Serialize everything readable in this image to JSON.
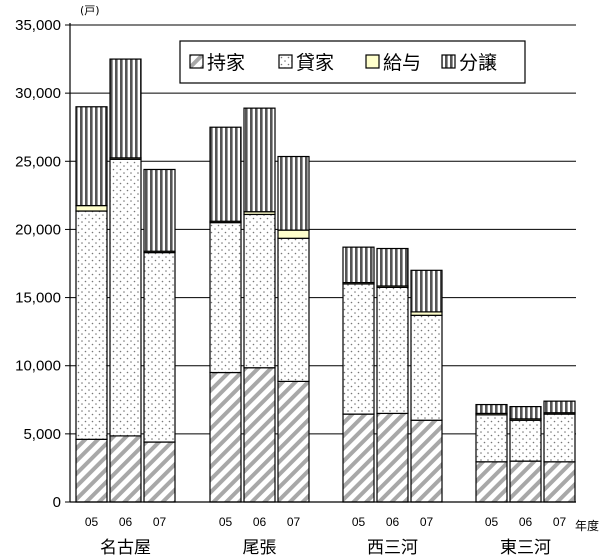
{
  "chart_data": {
    "type": "bar",
    "stacked": true,
    "unit": "(戸)",
    "x_unit": "年度",
    "ylim": [
      0,
      35000
    ],
    "yticks": [
      "0",
      "5,000",
      "10,000",
      "15,000",
      "20,000",
      "25,000",
      "30,000",
      "35,000"
    ],
    "grid": true,
    "legend_position": "top-right",
    "groups": [
      "名古屋",
      "尾張",
      "西三河",
      "東三河"
    ],
    "years": [
      "05",
      "06",
      "07"
    ],
    "series": [
      {
        "name": "持家",
        "pattern": "diagonal",
        "values": [
          [
            4600,
            4850,
            4400
          ],
          [
            9500,
            9850,
            8850
          ],
          [
            6450,
            6500,
            6000
          ],
          [
            2950,
            3000,
            2950
          ]
        ]
      },
      {
        "name": "貸家",
        "pattern": "dots",
        "values": [
          [
            16750,
            20300,
            13900
          ],
          [
            11000,
            11250,
            10500
          ],
          [
            9550,
            9250,
            7700
          ],
          [
            3450,
            3000,
            3500
          ]
        ]
      },
      {
        "name": "給与",
        "pattern": "yellow",
        "values": [
          [
            400,
            100,
            100
          ],
          [
            100,
            200,
            600
          ],
          [
            100,
            100,
            250
          ],
          [
            100,
            100,
            100
          ]
        ]
      },
      {
        "name": "分譲",
        "pattern": "vertical",
        "values": [
          [
            7250,
            7250,
            6000
          ],
          [
            6900,
            7600,
            5400
          ],
          [
            2600,
            2750,
            3050
          ],
          [
            650,
            900,
            850
          ]
        ]
      }
    ]
  },
  "colors": {
    "yellow_fill": "#ffffcc",
    "stroke": "#000000",
    "hatch": "#606060"
  }
}
